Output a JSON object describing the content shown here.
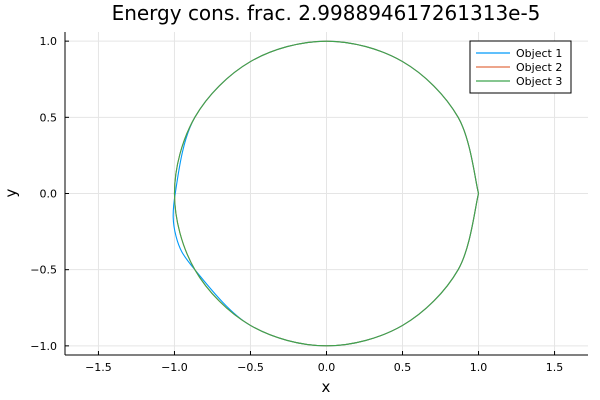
{
  "chart_data": {
    "type": "line",
    "title": "Energy cons. frac. 2.998894617261313e-5",
    "xlabel": "x",
    "ylabel": "y",
    "xlim": [
      -1.72,
      1.72
    ],
    "ylim": [
      -1.06,
      1.06
    ],
    "xticks": [
      -1.5,
      -1.0,
      -0.5,
      0.0,
      0.5,
      1.0,
      1.5
    ],
    "xtick_labels": [
      "−1.5",
      "−1.0",
      "−0.5",
      "0.0",
      "0.5",
      "1.0",
      "1.5"
    ],
    "yticks": [
      -1.0,
      -0.5,
      0.0,
      0.5,
      1.0
    ],
    "ytick_labels": [
      "−1.0",
      "−0.5",
      "0.0",
      "0.5",
      "1.0"
    ],
    "grid": true,
    "legend_position": "top-right",
    "series": [
      {
        "name": "Object 1",
        "color": "#009af9",
        "x": [
          1.0,
          0.866,
          0.5,
          0.0,
          -0.5,
          -0.866,
          -0.995,
          -0.99,
          -0.866,
          -0.5,
          0.0,
          0.5,
          0.866,
          1.0
        ],
        "y": [
          0.0,
          0.5,
          0.866,
          1.0,
          0.866,
          0.5,
          0.0,
          -0.28,
          -0.5,
          -0.866,
          -1.0,
          -0.866,
          -0.5,
          0.0
        ]
      },
      {
        "name": "Object 2",
        "color": "#e26f46",
        "x": [
          1.0,
          0.866,
          0.5,
          0.0,
          -0.5,
          -0.866,
          -1.0,
          -0.866,
          -0.5,
          0.0,
          0.5,
          0.866,
          1.0
        ],
        "y": [
          0.0,
          0.5,
          0.866,
          1.0,
          0.866,
          0.5,
          0.0,
          -0.5,
          -0.866,
          -1.0,
          -0.866,
          -0.5,
          0.0
        ]
      },
      {
        "name": "Object 3",
        "color": "#3da44d",
        "x": [
          1.0,
          0.866,
          0.5,
          0.0,
          -0.5,
          -0.866,
          -1.0,
          -0.866,
          -0.5,
          0.0,
          0.5,
          0.866,
          1.0
        ],
        "y": [
          0.0,
          0.5,
          0.866,
          1.0,
          0.866,
          0.5,
          0.0,
          -0.5,
          -0.866,
          -1.0,
          -0.866,
          -0.5,
          0.0
        ]
      }
    ]
  }
}
